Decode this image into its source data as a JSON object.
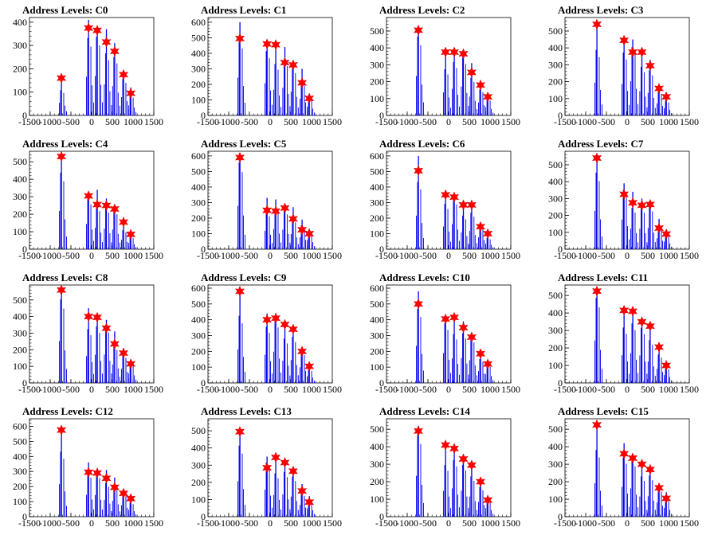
{
  "figure": {
    "x_ticks": [
      "-1500",
      "-1000",
      "-500",
      "0",
      "500",
      "1000",
      "1500"
    ]
  },
  "chart_data": [
    {
      "type": "bar",
      "title": "Address Levels: C0",
      "xlim": [
        -1500,
        1500
      ],
      "ylim": [
        0,
        420
      ],
      "yticks": [
        0,
        100,
        200,
        300,
        400
      ],
      "peaks": [
        {
          "x": -730,
          "y": 150
        },
        {
          "x": -75,
          "y": 410
        },
        {
          "x": 135,
          "y": 375
        },
        {
          "x": 355,
          "y": 370
        },
        {
          "x": 555,
          "y": 310
        },
        {
          "x": 770,
          "y": 175
        },
        {
          "x": 945,
          "y": 120
        }
      ],
      "markers": [
        {
          "x": -730,
          "y": 160
        },
        {
          "x": -75,
          "y": 375
        },
        {
          "x": 135,
          "y": 365
        },
        {
          "x": 355,
          "y": 315
        },
        {
          "x": 555,
          "y": 275
        },
        {
          "x": 770,
          "y": 175
        },
        {
          "x": 945,
          "y": 95
        }
      ]
    },
    {
      "type": "bar",
      "title": "Address Levels: C1",
      "xlim": [
        -1500,
        1500
      ],
      "ylim": [
        0,
        630
      ],
      "yticks": [
        0,
        100,
        200,
        300,
        400,
        500,
        600
      ],
      "peaks": [
        {
          "x": -730,
          "y": 600
        },
        {
          "x": -75,
          "y": 460
        },
        {
          "x": 135,
          "y": 460
        },
        {
          "x": 355,
          "y": 440
        },
        {
          "x": 555,
          "y": 340
        },
        {
          "x": 770,
          "y": 300
        },
        {
          "x": 945,
          "y": 140
        }
      ],
      "markers": [
        {
          "x": -730,
          "y": 495
        },
        {
          "x": -75,
          "y": 460
        },
        {
          "x": 135,
          "y": 455
        },
        {
          "x": 355,
          "y": 340
        },
        {
          "x": 555,
          "y": 325
        },
        {
          "x": 770,
          "y": 210
        },
        {
          "x": 945,
          "y": 110
        }
      ]
    },
    {
      "type": "bar",
      "title": "Address Levels: C2",
      "xlim": [
        -1500,
        1500
      ],
      "ylim": [
        0,
        580
      ],
      "yticks": [
        0,
        100,
        200,
        300,
        400,
        500
      ],
      "peaks": [
        {
          "x": -730,
          "y": 520
        },
        {
          "x": -75,
          "y": 380
        },
        {
          "x": 135,
          "y": 390
        },
        {
          "x": 355,
          "y": 380
        },
        {
          "x": 555,
          "y": 310
        },
        {
          "x": 770,
          "y": 190
        },
        {
          "x": 945,
          "y": 110
        }
      ],
      "markers": [
        {
          "x": -730,
          "y": 505
        },
        {
          "x": -75,
          "y": 375
        },
        {
          "x": 135,
          "y": 375
        },
        {
          "x": 355,
          "y": 365
        },
        {
          "x": 555,
          "y": 255
        },
        {
          "x": 770,
          "y": 180
        },
        {
          "x": 945,
          "y": 110
        }
      ]
    },
    {
      "type": "bar",
      "title": "Address Levels: C3",
      "xlim": [
        -1500,
        1500
      ],
      "ylim": [
        0,
        580
      ],
      "yticks": [
        0,
        100,
        200,
        300,
        400,
        500
      ],
      "peaks": [
        {
          "x": -730,
          "y": 540
        },
        {
          "x": -75,
          "y": 460
        },
        {
          "x": 135,
          "y": 450
        },
        {
          "x": 355,
          "y": 400
        },
        {
          "x": 555,
          "y": 330
        },
        {
          "x": 770,
          "y": 160
        },
        {
          "x": 945,
          "y": 120
        }
      ],
      "markers": [
        {
          "x": -730,
          "y": 540
        },
        {
          "x": -75,
          "y": 445
        },
        {
          "x": 135,
          "y": 375
        },
        {
          "x": 355,
          "y": 375
        },
        {
          "x": 555,
          "y": 295
        },
        {
          "x": 770,
          "y": 160
        },
        {
          "x": 945,
          "y": 110
        }
      ]
    },
    {
      "type": "bar",
      "title": "Address Levels: C4",
      "xlim": [
        -1500,
        1500
      ],
      "ylim": [
        0,
        560
      ],
      "yticks": [
        0,
        100,
        200,
        300,
        400,
        500
      ],
      "peaks": [
        {
          "x": -730,
          "y": 540
        },
        {
          "x": -75,
          "y": 320
        },
        {
          "x": 135,
          "y": 340
        },
        {
          "x": 355,
          "y": 290
        },
        {
          "x": 555,
          "y": 250
        },
        {
          "x": 770,
          "y": 150
        },
        {
          "x": 945,
          "y": 90
        }
      ],
      "markers": [
        {
          "x": -730,
          "y": 530
        },
        {
          "x": -75,
          "y": 305
        },
        {
          "x": 135,
          "y": 255
        },
        {
          "x": 355,
          "y": 250
        },
        {
          "x": 555,
          "y": 230
        },
        {
          "x": 770,
          "y": 155
        },
        {
          "x": 945,
          "y": 85
        }
      ]
    },
    {
      "type": "bar",
      "title": "Address Levels: C5",
      "xlim": [
        -1500,
        1500
      ],
      "ylim": [
        0,
        630
      ],
      "yticks": [
        0,
        100,
        200,
        300,
        400,
        500,
        600
      ],
      "peaks": [
        {
          "x": -730,
          "y": 620
        },
        {
          "x": -75,
          "y": 330
        },
        {
          "x": 135,
          "y": 320
        },
        {
          "x": 355,
          "y": 280
        },
        {
          "x": 555,
          "y": 270
        },
        {
          "x": 770,
          "y": 190
        },
        {
          "x": 945,
          "y": 130
        }
      ],
      "markers": [
        {
          "x": -730,
          "y": 590
        },
        {
          "x": -75,
          "y": 250
        },
        {
          "x": 135,
          "y": 245
        },
        {
          "x": 355,
          "y": 265
        },
        {
          "x": 555,
          "y": 195
        },
        {
          "x": 770,
          "y": 125
        },
        {
          "x": 945,
          "y": 100
        }
      ]
    },
    {
      "type": "bar",
      "title": "Address Levels: C6",
      "xlim": [
        -1500,
        1500
      ],
      "ylim": [
        0,
        630
      ],
      "yticks": [
        0,
        100,
        200,
        300,
        400,
        500,
        600
      ],
      "peaks": [
        {
          "x": -730,
          "y": 600
        },
        {
          "x": -75,
          "y": 360
        },
        {
          "x": 135,
          "y": 360
        },
        {
          "x": 355,
          "y": 300
        },
        {
          "x": 555,
          "y": 290
        },
        {
          "x": 770,
          "y": 170
        },
        {
          "x": 945,
          "y": 100
        }
      ],
      "markers": [
        {
          "x": -730,
          "y": 505
        },
        {
          "x": -75,
          "y": 350
        },
        {
          "x": 135,
          "y": 335
        },
        {
          "x": 355,
          "y": 285
        },
        {
          "x": 555,
          "y": 285
        },
        {
          "x": 770,
          "y": 145
        },
        {
          "x": 945,
          "y": 100
        }
      ]
    },
    {
      "type": "bar",
      "title": "Address Levels: C7",
      "xlim": [
        -1500,
        1500
      ],
      "ylim": [
        0,
        580
      ],
      "yticks": [
        0,
        100,
        200,
        300,
        400,
        500
      ],
      "peaks": [
        {
          "x": -730,
          "y": 560
        },
        {
          "x": -75,
          "y": 390
        },
        {
          "x": 135,
          "y": 340
        },
        {
          "x": 355,
          "y": 300
        },
        {
          "x": 555,
          "y": 280
        },
        {
          "x": 770,
          "y": 180
        },
        {
          "x": 945,
          "y": 110
        }
      ],
      "markers": [
        {
          "x": -730,
          "y": 540
        },
        {
          "x": -75,
          "y": 325
        },
        {
          "x": 135,
          "y": 275
        },
        {
          "x": 355,
          "y": 260
        },
        {
          "x": 555,
          "y": 265
        },
        {
          "x": 770,
          "y": 125
        },
        {
          "x": 945,
          "y": 90
        }
      ]
    },
    {
      "type": "bar",
      "title": "Address Levels: C8",
      "xlim": [
        -1500,
        1500
      ],
      "ylim": [
        0,
        590
      ],
      "yticks": [
        0,
        100,
        200,
        300,
        400,
        500
      ],
      "peaks": [
        {
          "x": -730,
          "y": 560
        },
        {
          "x": -75,
          "y": 450
        },
        {
          "x": 135,
          "y": 420
        },
        {
          "x": 355,
          "y": 380
        },
        {
          "x": 555,
          "y": 310
        },
        {
          "x": 770,
          "y": 210
        },
        {
          "x": 945,
          "y": 130
        }
      ],
      "markers": [
        {
          "x": -730,
          "y": 560
        },
        {
          "x": -75,
          "y": 400
        },
        {
          "x": 135,
          "y": 395
        },
        {
          "x": 355,
          "y": 330
        },
        {
          "x": 555,
          "y": 235
        },
        {
          "x": 770,
          "y": 180
        },
        {
          "x": 945,
          "y": 115
        }
      ]
    },
    {
      "type": "bar",
      "title": "Address Levels: C9",
      "xlim": [
        -1500,
        1500
      ],
      "ylim": [
        0,
        620
      ],
      "yticks": [
        0,
        100,
        200,
        300,
        400,
        500,
        600
      ],
      "peaks": [
        {
          "x": -730,
          "y": 590
        },
        {
          "x": -75,
          "y": 440
        },
        {
          "x": 135,
          "y": 440
        },
        {
          "x": 355,
          "y": 390
        },
        {
          "x": 555,
          "y": 360
        },
        {
          "x": 770,
          "y": 220
        },
        {
          "x": 945,
          "y": 120
        }
      ],
      "markers": [
        {
          "x": -730,
          "y": 580
        },
        {
          "x": -75,
          "y": 400
        },
        {
          "x": 135,
          "y": 410
        },
        {
          "x": 355,
          "y": 370
        },
        {
          "x": 555,
          "y": 340
        },
        {
          "x": 770,
          "y": 200
        },
        {
          "x": 945,
          "y": 105
        }
      ]
    },
    {
      "type": "bar",
      "title": "Address Levels: C10",
      "xlim": [
        -1500,
        1500
      ],
      "ylim": [
        0,
        620
      ],
      "yticks": [
        0,
        100,
        200,
        300,
        400,
        500,
        600
      ],
      "peaks": [
        {
          "x": -730,
          "y": 580
        },
        {
          "x": -75,
          "y": 420
        },
        {
          "x": 135,
          "y": 430
        },
        {
          "x": 355,
          "y": 390
        },
        {
          "x": 555,
          "y": 320
        },
        {
          "x": 770,
          "y": 210
        },
        {
          "x": 945,
          "y": 140
        }
      ],
      "markers": [
        {
          "x": -730,
          "y": 500
        },
        {
          "x": -75,
          "y": 405
        },
        {
          "x": 135,
          "y": 415
        },
        {
          "x": 355,
          "y": 350
        },
        {
          "x": 555,
          "y": 290
        },
        {
          "x": 770,
          "y": 185
        },
        {
          "x": 945,
          "y": 120
        }
      ]
    },
    {
      "type": "bar",
      "title": "Address Levels: C11",
      "xlim": [
        -1500,
        1500
      ],
      "ylim": [
        0,
        560
      ],
      "yticks": [
        0,
        100,
        200,
        300,
        400,
        500
      ],
      "peaks": [
        {
          "x": -730,
          "y": 540
        },
        {
          "x": -75,
          "y": 440
        },
        {
          "x": 135,
          "y": 420
        },
        {
          "x": 355,
          "y": 350
        },
        {
          "x": 555,
          "y": 340
        },
        {
          "x": 770,
          "y": 200
        },
        {
          "x": 945,
          "y": 100
        }
      ],
      "markers": [
        {
          "x": -730,
          "y": 525
        },
        {
          "x": -75,
          "y": 415
        },
        {
          "x": 135,
          "y": 410
        },
        {
          "x": 355,
          "y": 350
        },
        {
          "x": 555,
          "y": 325
        },
        {
          "x": 770,
          "y": 205
        },
        {
          "x": 945,
          "y": 100
        }
      ]
    },
    {
      "type": "bar",
      "title": "Address Levels: C12",
      "xlim": [
        -1500,
        1500
      ],
      "ylim": [
        0,
        650
      ],
      "yticks": [
        0,
        100,
        200,
        300,
        400,
        500,
        600
      ],
      "peaks": [
        {
          "x": -730,
          "y": 600
        },
        {
          "x": -75,
          "y": 360
        },
        {
          "x": 135,
          "y": 320
        },
        {
          "x": 355,
          "y": 310
        },
        {
          "x": 555,
          "y": 260
        },
        {
          "x": 770,
          "y": 170
        },
        {
          "x": 945,
          "y": 130
        }
      ],
      "markers": [
        {
          "x": -730,
          "y": 575
        },
        {
          "x": -75,
          "y": 295
        },
        {
          "x": 135,
          "y": 290
        },
        {
          "x": 355,
          "y": 255
        },
        {
          "x": 555,
          "y": 195
        },
        {
          "x": 770,
          "y": 155
        },
        {
          "x": 945,
          "y": 120
        }
      ]
    },
    {
      "type": "bar",
      "title": "Address Levels: C13",
      "xlim": [
        -1500,
        1500
      ],
      "ylim": [
        0,
        570
      ],
      "yticks": [
        0,
        100,
        200,
        300,
        400,
        500
      ],
      "peaks": [
        {
          "x": -730,
          "y": 510
        },
        {
          "x": -75,
          "y": 350
        },
        {
          "x": 135,
          "y": 350
        },
        {
          "x": 355,
          "y": 320
        },
        {
          "x": 555,
          "y": 260
        },
        {
          "x": 770,
          "y": 190
        },
        {
          "x": 945,
          "y": 120
        }
      ],
      "markers": [
        {
          "x": -730,
          "y": 495
        },
        {
          "x": -75,
          "y": 285
        },
        {
          "x": 135,
          "y": 345
        },
        {
          "x": 355,
          "y": 315
        },
        {
          "x": 555,
          "y": 265
        },
        {
          "x": 770,
          "y": 150
        },
        {
          "x": 945,
          "y": 85
        }
      ]
    },
    {
      "type": "bar",
      "title": "Address Levels: C14",
      "xlim": [
        -1500,
        1500
      ],
      "ylim": [
        0,
        560
      ],
      "yticks": [
        0,
        100,
        200,
        300,
        400,
        500
      ],
      "peaks": [
        {
          "x": -730,
          "y": 520
        },
        {
          "x": -75,
          "y": 410
        },
        {
          "x": 135,
          "y": 400
        },
        {
          "x": 355,
          "y": 330
        },
        {
          "x": 555,
          "y": 320
        },
        {
          "x": 770,
          "y": 210
        },
        {
          "x": 945,
          "y": 110
        }
      ],
      "markers": [
        {
          "x": -730,
          "y": 490
        },
        {
          "x": -75,
          "y": 410
        },
        {
          "x": 135,
          "y": 390
        },
        {
          "x": 355,
          "y": 330
        },
        {
          "x": 555,
          "y": 295
        },
        {
          "x": 770,
          "y": 200
        },
        {
          "x": 945,
          "y": 95
        }
      ]
    },
    {
      "type": "bar",
      "title": "Address Levels: C15",
      "xlim": [
        -1500,
        1500
      ],
      "ylim": [
        0,
        560
      ],
      "yticks": [
        0,
        100,
        200,
        300,
        400,
        500
      ],
      "peaks": [
        {
          "x": -730,
          "y": 530
        },
        {
          "x": -75,
          "y": 420
        },
        {
          "x": 135,
          "y": 360
        },
        {
          "x": 355,
          "y": 320
        },
        {
          "x": 555,
          "y": 290
        },
        {
          "x": 770,
          "y": 180
        },
        {
          "x": 945,
          "y": 140
        }
      ],
      "markers": [
        {
          "x": -730,
          "y": 525
        },
        {
          "x": -75,
          "y": 360
        },
        {
          "x": 135,
          "y": 335
        },
        {
          "x": 355,
          "y": 300
        },
        {
          "x": 555,
          "y": 270
        },
        {
          "x": 770,
          "y": 165
        },
        {
          "x": 945,
          "y": 105
        }
      ]
    }
  ]
}
